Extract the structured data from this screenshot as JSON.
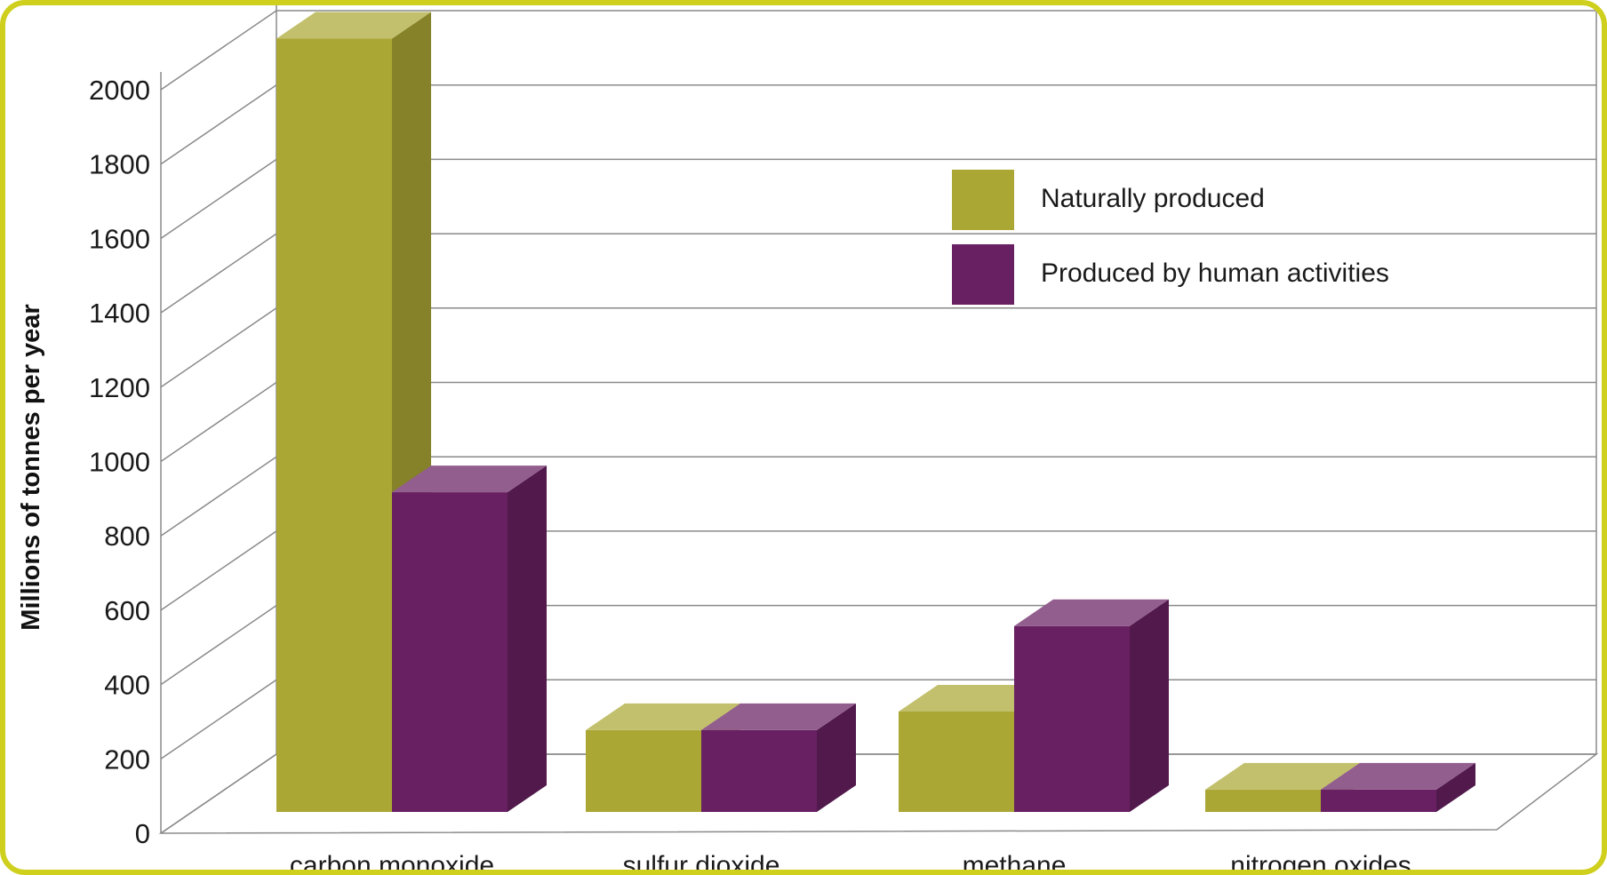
{
  "chart_data": {
    "type": "bar",
    "ylabel": "Millions of tonnes per year",
    "ylim": [
      0,
      2000
    ],
    "yticks": [
      0,
      200,
      400,
      600,
      800,
      1000,
      1200,
      1400,
      1600,
      1800,
      2000
    ],
    "categories": [
      "carbon monoxide",
      "sulfur dioxide",
      "methane",
      "nitrogen oxides"
    ],
    "series": [
      {
        "name": "Naturally produced",
        "values": [
          2080,
          220,
          270,
          60
        ],
        "color": "#aaa734"
      },
      {
        "name": "Produced by human activities",
        "values": [
          860,
          220,
          500,
          60
        ],
        "color": "#682062"
      }
    ],
    "grid": true,
    "legend_position": "top-right",
    "style": "3d"
  }
}
